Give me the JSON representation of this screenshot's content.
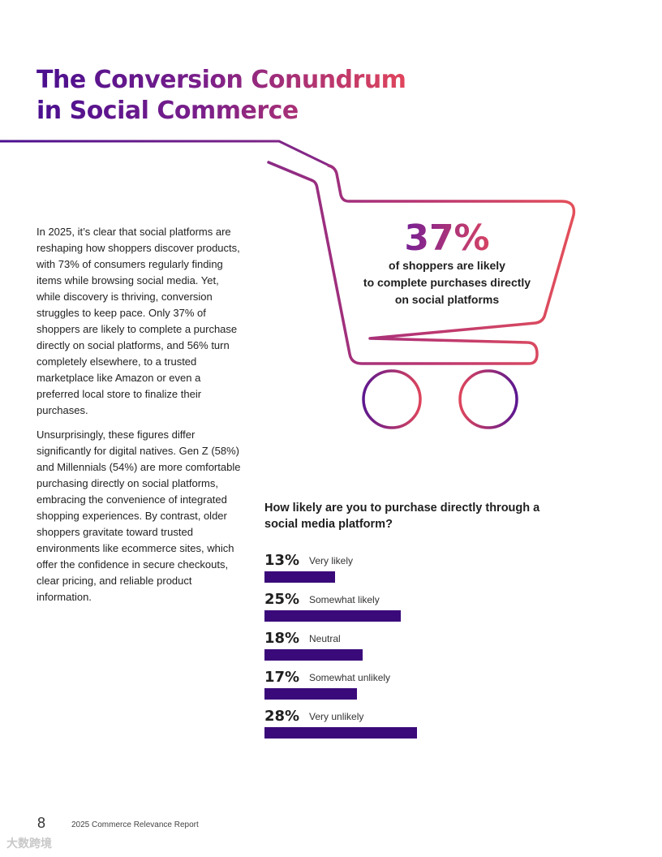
{
  "header": {
    "title_line1": "The Conversion Conundrum",
    "title_line2": "in Social Commerce"
  },
  "body": {
    "paragraph1": "In 2025, it’s clear that social platforms are reshaping how shoppers discover products, with 73% of consumers regularly finding items while browsing social media. Yet, while discovery is thriving, conversion struggles to keep pace. Only 37% of shoppers are likely to complete a purchase directly on social platforms, and 56% turn completely elsewhere, to a trusted marketplace like Amazon or even a preferred local store to finalize their purchases.",
    "paragraph2": "Unsurprisingly, these figures differ significantly for digital natives. Gen Z (58%) and Millennials (54%) are more comfortable purchasing directly on social platforms, embracing the convenience of integrated shopping experiences. By contrast, older shoppers gravitate toward trusted environments like ecommerce sites, which offer the confidence in secure checkouts, clear pricing, and reliable product information."
  },
  "callout": {
    "stat": "37%",
    "caption_line1": "of shoppers are likely",
    "caption_line2": "to complete purchases directly",
    "caption_line3": "on social platforms",
    "icon": "shopping-cart-icon"
  },
  "chart_data": {
    "type": "bar",
    "title": "How likely are you to purchase directly through a social media platform?",
    "orientation": "horizontal",
    "categories": [
      "Very likely",
      "Somewhat likely",
      "Neutral",
      "Somewhat unlikely",
      "Very unlikely"
    ],
    "values": [
      13,
      25,
      18,
      17,
      28
    ],
    "value_labels": [
      "13%",
      "25%",
      "18%",
      "17%",
      "28%"
    ],
    "unit": "%",
    "bar_color": "#3a0a7a"
  },
  "footer": {
    "page_number": "8",
    "report_title": "2025 Commerce Relevance Report"
  },
  "watermark": {
    "text": "大数跨境"
  },
  "colors": {
    "gradient_start": "#4a0f8f",
    "gradient_end": "#e0455c",
    "bar": "#3a0a7a"
  }
}
